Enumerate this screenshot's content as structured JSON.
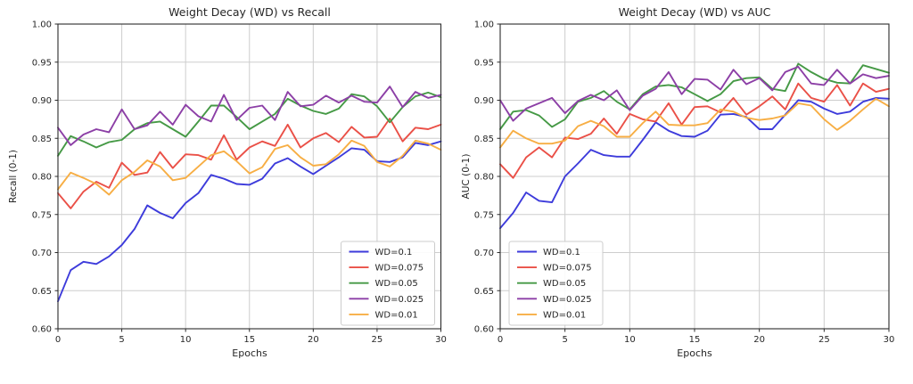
{
  "figure": {
    "background": "#ffffff",
    "grid_color": "#cdcdcd",
    "spine_color": "#2b2b2b",
    "text_color": "#262626",
    "legend_border_color": "#cccccc",
    "legend_background": "rgba(255,255,255,0.9)"
  },
  "chart_data": [
    {
      "type": "line",
      "title": "Weight Decay (WD) vs Recall",
      "xlabel": "Epochs",
      "ylabel": "Recall (0-1)",
      "xlim": [
        0,
        30
      ],
      "ylim": [
        0.6,
        1.0
      ],
      "xticks": [
        0,
        5,
        10,
        15,
        20,
        25,
        30
      ],
      "yticks": [
        "0.60",
        "0.65",
        "0.70",
        "0.75",
        "0.80",
        "0.85",
        "0.90",
        "0.95",
        "1.00"
      ],
      "grid": true,
      "legend_position": "lower-right",
      "x": [
        0,
        1,
        2,
        3,
        4,
        5,
        6,
        7,
        8,
        9,
        10,
        11,
        12,
        13,
        14,
        15,
        16,
        17,
        18,
        19,
        20,
        21,
        22,
        23,
        24,
        25,
        26,
        27,
        28,
        29,
        30
      ],
      "series": [
        {
          "name": "WD=0.1",
          "color": "#3d3bdb",
          "values": [
            0.636,
            0.677,
            0.688,
            0.685,
            0.695,
            0.71,
            0.731,
            0.762,
            0.752,
            0.745,
            0.765,
            0.778,
            0.802,
            0.797,
            0.79,
            0.789,
            0.797,
            0.817,
            0.824,
            0.813,
            0.803,
            0.814,
            0.825,
            0.837,
            0.835,
            0.82,
            0.819,
            0.825,
            0.844,
            0.841,
            0.846
          ]
        },
        {
          "name": "WD=0.075",
          "color": "#ea5047",
          "values": [
            0.778,
            0.758,
            0.78,
            0.793,
            0.785,
            0.818,
            0.802,
            0.805,
            0.832,
            0.811,
            0.829,
            0.828,
            0.822,
            0.854,
            0.822,
            0.838,
            0.846,
            0.84,
            0.868,
            0.838,
            0.85,
            0.857,
            0.845,
            0.865,
            0.851,
            0.852,
            0.876,
            0.846,
            0.864,
            0.862,
            0.868
          ]
        },
        {
          "name": "WD=0.05",
          "color": "#459945",
          "values": [
            0.827,
            0.853,
            0.846,
            0.838,
            0.845,
            0.848,
            0.862,
            0.87,
            0.872,
            0.862,
            0.852,
            0.872,
            0.893,
            0.893,
            0.878,
            0.862,
            0.872,
            0.882,
            0.902,
            0.893,
            0.886,
            0.882,
            0.889,
            0.908,
            0.905,
            0.892,
            0.871,
            0.891,
            0.905,
            0.91,
            0.904
          ]
        },
        {
          "name": "WD=0.025",
          "color": "#8c3fa6",
          "values": [
            0.864,
            0.841,
            0.855,
            0.862,
            0.858,
            0.888,
            0.862,
            0.867,
            0.885,
            0.868,
            0.894,
            0.879,
            0.872,
            0.907,
            0.874,
            0.89,
            0.893,
            0.874,
            0.911,
            0.892,
            0.894,
            0.906,
            0.897,
            0.906,
            0.898,
            0.897,
            0.918,
            0.891,
            0.911,
            0.903,
            0.907
          ]
        },
        {
          "name": "WD=0.01",
          "color": "#f7ae44",
          "values": [
            0.783,
            0.805,
            0.798,
            0.79,
            0.776,
            0.795,
            0.806,
            0.821,
            0.813,
            0.795,
            0.798,
            0.813,
            0.828,
            0.833,
            0.82,
            0.804,
            0.812,
            0.836,
            0.841,
            0.825,
            0.814,
            0.816,
            0.829,
            0.847,
            0.84,
            0.819,
            0.813,
            0.827,
            0.847,
            0.843,
            0.835
          ]
        }
      ]
    },
    {
      "type": "line",
      "title": "Weight Decay (WD) vs AUC",
      "xlabel": "Epochs",
      "ylabel": "AUC (0-1)",
      "xlim": [
        0,
        30
      ],
      "ylim": [
        0.6,
        1.0
      ],
      "xticks": [
        0,
        5,
        10,
        15,
        20,
        25,
        30
      ],
      "yticks": [
        "0.60",
        "0.65",
        "0.70",
        "0.75",
        "0.80",
        "0.85",
        "0.90",
        "0.95",
        "1.00"
      ],
      "grid": true,
      "legend_position": "lower-left",
      "x": [
        0,
        1,
        2,
        3,
        4,
        5,
        6,
        7,
        8,
        9,
        10,
        11,
        12,
        13,
        14,
        15,
        16,
        17,
        18,
        19,
        20,
        21,
        22,
        23,
        24,
        25,
        26,
        27,
        28,
        29,
        30
      ],
      "series": [
        {
          "name": "WD=0.1",
          "color": "#3d3bdb",
          "values": [
            0.732,
            0.752,
            0.779,
            0.768,
            0.766,
            0.8,
            0.817,
            0.835,
            0.828,
            0.826,
            0.826,
            0.848,
            0.871,
            0.86,
            0.853,
            0.852,
            0.86,
            0.881,
            0.882,
            0.878,
            0.862,
            0.862,
            0.881,
            0.9,
            0.898,
            0.889,
            0.882,
            0.885,
            0.898,
            0.903,
            0.902
          ]
        },
        {
          "name": "WD=0.075",
          "color": "#ea5047",
          "values": [
            0.816,
            0.798,
            0.825,
            0.838,
            0.825,
            0.851,
            0.849,
            0.856,
            0.876,
            0.856,
            0.882,
            0.875,
            0.872,
            0.896,
            0.868,
            0.891,
            0.892,
            0.884,
            0.903,
            0.881,
            0.892,
            0.905,
            0.888,
            0.922,
            0.903,
            0.898,
            0.92,
            0.893,
            0.922,
            0.911,
            0.915
          ]
        },
        {
          "name": "WD=0.05",
          "color": "#459945",
          "values": [
            0.862,
            0.885,
            0.887,
            0.88,
            0.865,
            0.875,
            0.898,
            0.903,
            0.912,
            0.898,
            0.888,
            0.908,
            0.918,
            0.92,
            0.917,
            0.908,
            0.899,
            0.908,
            0.925,
            0.929,
            0.93,
            0.915,
            0.912,
            0.948,
            0.937,
            0.928,
            0.923,
            0.922,
            0.946,
            0.941,
            0.936
          ]
        },
        {
          "name": "WD=0.025",
          "color": "#8c3fa6",
          "values": [
            0.9,
            0.873,
            0.889,
            0.896,
            0.903,
            0.883,
            0.899,
            0.907,
            0.9,
            0.913,
            0.887,
            0.906,
            0.915,
            0.937,
            0.908,
            0.928,
            0.927,
            0.914,
            0.94,
            0.921,
            0.929,
            0.913,
            0.937,
            0.944,
            0.922,
            0.92,
            0.94,
            0.922,
            0.934,
            0.929,
            0.932
          ]
        },
        {
          "name": "WD=0.01",
          "color": "#f7ae44",
          "values": [
            0.838,
            0.86,
            0.85,
            0.843,
            0.843,
            0.847,
            0.866,
            0.873,
            0.866,
            0.852,
            0.852,
            0.87,
            0.885,
            0.868,
            0.867,
            0.867,
            0.87,
            0.888,
            0.885,
            0.877,
            0.874,
            0.876,
            0.88,
            0.896,
            0.893,
            0.875,
            0.861,
            0.873,
            0.888,
            0.902,
            0.892
          ]
        }
      ]
    }
  ]
}
